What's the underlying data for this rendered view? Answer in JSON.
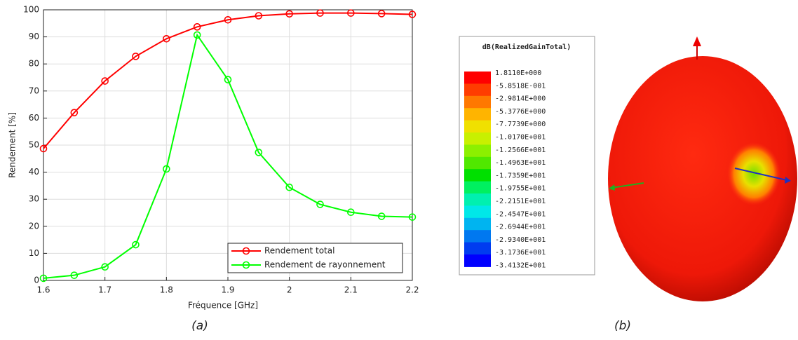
{
  "chart_data": {
    "type": "line",
    "xlabel": "Fréquence [GHz]",
    "ylabel": "Rendement [%]",
    "x": [
      1.6,
      1.65,
      1.7,
      1.75,
      1.8,
      1.85,
      1.9,
      1.95,
      2,
      2.05,
      2.1,
      2.15,
      2.2
    ],
    "series": [
      {
        "name": "Rendement total",
        "color": "#ff0000",
        "values": [
          48.7,
          62,
          73.7,
          82.8,
          89.3,
          93.7,
          96.3,
          97.8,
          98.5,
          98.8,
          98.8,
          98.6,
          98.3
        ]
      },
      {
        "name": "Rendement de rayonnement",
        "color": "#00ff00",
        "values": [
          0.8,
          1.9,
          5,
          13.2,
          41.2,
          90.7,
          74.2,
          47.3,
          34.4,
          28.1,
          25.2,
          23.7,
          23.4
        ]
      }
    ],
    "xlim": [
      1.6,
      2.2
    ],
    "xticks": [
      1.6,
      1.7,
      1.8,
      1.9,
      2,
      2.1,
      2.2
    ],
    "ylim": [
      0,
      100
    ],
    "yticks": [
      0,
      10,
      20,
      30,
      40,
      50,
      60,
      70,
      80,
      90,
      100
    ],
    "grid": true,
    "legend": "lower-right"
  },
  "gain_legend": {
    "title": "dB(RealizedGainTotal)",
    "labels": [
      "1.8110E+000",
      "-5.8518E-001",
      "-2.9814E+000",
      "-5.3776E+000",
      "-7.7739E+000",
      "-1.0170E+001",
      "-1.2566E+001",
      "-1.4963E+001",
      "-1.7359E+001",
      "-1.9755E+001",
      "-2.2151E+001",
      "-2.4547E+001",
      "-2.6944E+001",
      "-2.9340E+001",
      "-3.1736E+001",
      "-3.4132E+001"
    ],
    "colors": [
      "#ff0000",
      "#ff3c00",
      "#ff7800",
      "#ffb400",
      "#f0e000",
      "#c8f000",
      "#8cf000",
      "#50e800",
      "#00e000",
      "#00f060",
      "#00f0b0",
      "#00e8e8",
      "#00b4f0",
      "#0078f0",
      "#003cf0",
      "#0000ff"
    ]
  },
  "captions": [
    "(a)",
    "(b)"
  ]
}
